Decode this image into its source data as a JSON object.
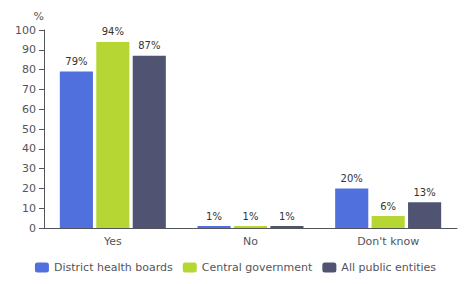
{
  "chart_data": {
    "type": "bar",
    "ylabel": "%",
    "categories": [
      "Yes",
      "No",
      "Don't know"
    ],
    "series": [
      {
        "name": "District health boards",
        "values": [
          79,
          1,
          20
        ],
        "value_labels": [
          "79%",
          "1%",
          "20%"
        ]
      },
      {
        "name": "Central government",
        "values": [
          94,
          1,
          6
        ],
        "value_labels": [
          "94%",
          "1%",
          "6%"
        ]
      },
      {
        "name": "All public entities",
        "values": [
          87,
          1,
          13
        ],
        "value_labels": [
          "87%",
          "1%",
          "13%"
        ]
      }
    ],
    "ylim": [
      0,
      100
    ],
    "yticks": [
      0,
      10,
      20,
      30,
      40,
      50,
      60,
      70,
      80,
      90,
      100
    ],
    "data_labels": true,
    "grid": false,
    "legend": "bottom"
  }
}
